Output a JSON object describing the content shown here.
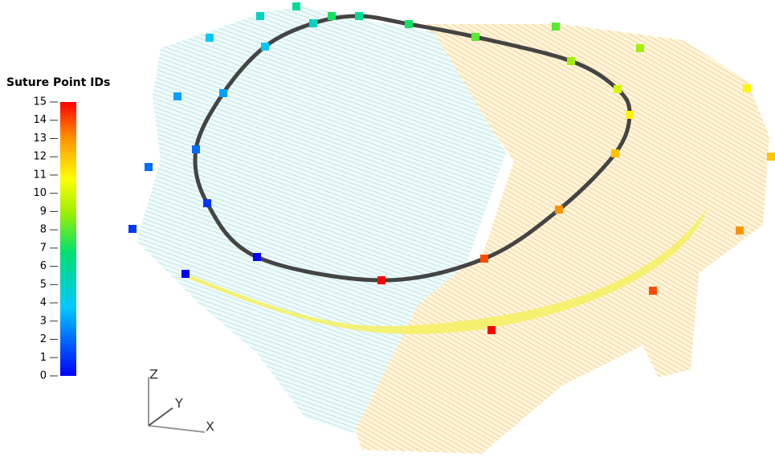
{
  "colorbar": {
    "title": "Suture Point IDs",
    "min": 0,
    "max": 15,
    "ticks": [
      0,
      1,
      2,
      3,
      4,
      5,
      6,
      7,
      8,
      9,
      10,
      11,
      12,
      13,
      14,
      15
    ]
  },
  "axes": {
    "z": "Z",
    "y": "Y",
    "x": "X"
  },
  "inner_points": [
    0,
    1,
    2,
    3,
    4,
    5,
    6,
    7,
    8,
    9,
    10,
    11,
    12,
    13,
    14,
    15
  ],
  "outer_points": [
    0,
    1,
    2,
    3,
    4,
    5,
    6,
    7,
    8,
    9,
    11,
    12,
    13,
    14,
    15
  ]
}
